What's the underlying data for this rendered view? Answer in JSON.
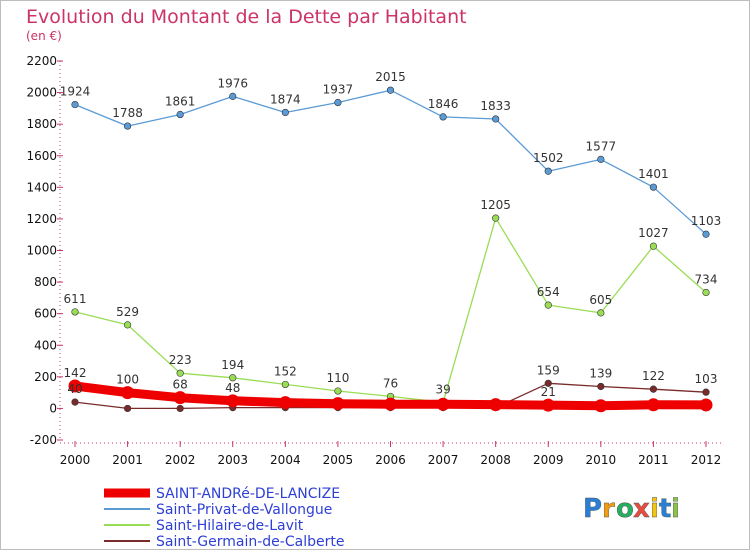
{
  "chart_data": {
    "type": "line",
    "title": "Evolution du Montant de la Dette par Habitant",
    "subtitle": "(en €)",
    "x": [
      "2000",
      "2001",
      "2002",
      "2003",
      "2004",
      "2005",
      "2006",
      "2007",
      "2008",
      "2009",
      "2010",
      "2011",
      "2012"
    ],
    "ylim": [
      -200,
      2200
    ],
    "yticks": [
      -200,
      0,
      200,
      400,
      600,
      800,
      1000,
      1200,
      1400,
      1600,
      1800,
      2000,
      2200
    ],
    "grid": false,
    "legend_position": "bottom-left",
    "series": [
      {
        "name": "SAINT-ANDRé-DE-LANCIZE",
        "color": "#ee0000",
        "values": [
          142,
          100,
          68,
          48,
          37,
          30,
          27,
          26,
          24,
          21,
          17,
          23,
          22
        ],
        "labels": [
          "142",
          "100",
          "68",
          "48",
          "37",
          "30",
          "27",
          "26",
          "24",
          "21",
          "17",
          "23",
          "22"
        ],
        "labels_shown": [
          true,
          true,
          true,
          true,
          false,
          false,
          false,
          false,
          false,
          true,
          false,
          false,
          false
        ]
      },
      {
        "name": "Saint-Privat-de-Vallongue",
        "color": "#5b9bd5",
        "values": [
          1924,
          1788,
          1861,
          1976,
          1874,
          1937,
          2015,
          1846,
          1833,
          1502,
          1577,
          1401,
          1103
        ],
        "labels": [
          "1924",
          "1788",
          "1861",
          "1976",
          "1874",
          "1937",
          "2015",
          "1846",
          "1833",
          "1502",
          "1577",
          "1401",
          "1103"
        ]
      },
      {
        "name": "Saint-Hilaire-de-Lavit",
        "color": "#99dd55",
        "values": [
          611,
          529,
          223,
          194,
          152,
          110,
          76,
          39,
          1205,
          654,
          605,
          1027,
          734
        ],
        "labels": [
          "611",
          "529",
          "223",
          "194",
          "152",
          "110",
          "76",
          "39",
          "1205",
          "654",
          "605",
          "1027",
          "734"
        ]
      },
      {
        "name": "Saint-Germain-de-Calberte",
        "color": "#7a2a2a",
        "values": [
          40,
          0,
          0,
          5,
          5,
          5,
          5,
          5,
          5,
          159,
          139,
          122,
          103
        ],
        "labels": [
          "40",
          "0",
          "0",
          "5",
          "5",
          "5",
          "5",
          "5",
          "5",
          "159",
          "139",
          "122",
          "103"
        ],
        "labels_shown": [
          true,
          false,
          false,
          false,
          false,
          false,
          false,
          false,
          false,
          true,
          true,
          true,
          true
        ]
      }
    ]
  },
  "brand": {
    "letters": [
      "P",
      "r",
      "o",
      "x",
      "i",
      "t",
      "i"
    ],
    "colors": [
      "#2a7fd4",
      "#f39c12",
      "#27ae60",
      "#e74c3c",
      "#f1c40f",
      "#2a7fd4",
      "#8bc34a"
    ]
  }
}
